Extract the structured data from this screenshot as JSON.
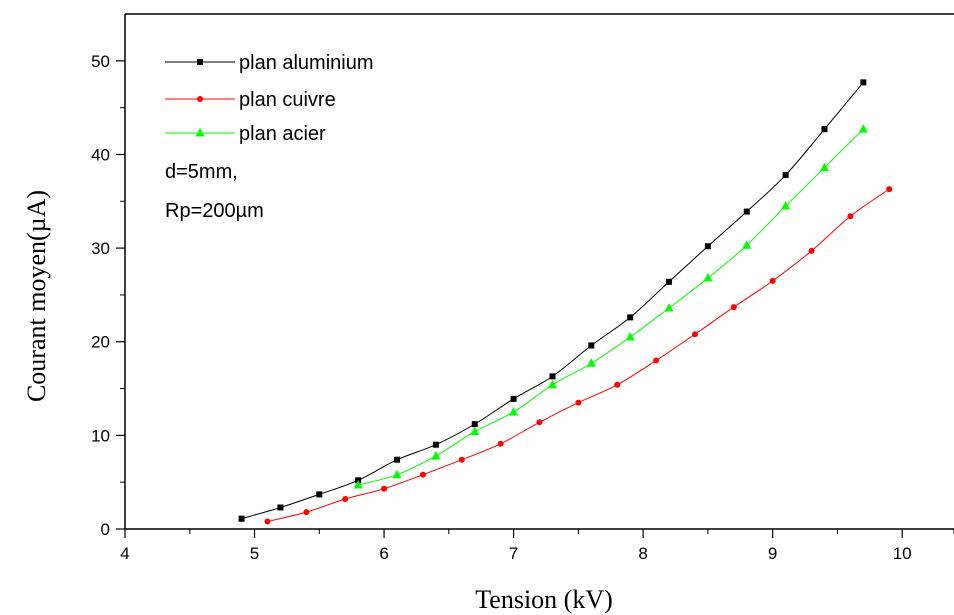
{
  "chart_data": {
    "type": "line",
    "xlabel": "Tension (kV)",
    "ylabel": "Courant moyen(µA)",
    "xlim": [
      4,
      10.4
    ],
    "ylim": [
      0,
      55
    ],
    "xticks": [
      4,
      5,
      6,
      7,
      8,
      9,
      10
    ],
    "yticks": [
      0,
      10,
      20,
      30,
      40,
      50
    ],
    "grid": false,
    "legend_position": "top-left",
    "annotations": [
      "d=5mm,",
      "Rp=200µm"
    ],
    "series": [
      {
        "name": "plan aluminium",
        "color": "#000000",
        "marker": "square",
        "x": [
          4.9,
          5.2,
          5.5,
          5.8,
          6.1,
          6.4,
          6.7,
          7.0,
          7.3,
          7.6,
          7.9,
          8.2,
          8.5,
          8.8,
          9.1,
          9.4,
          9.7
        ],
        "y": [
          1.1,
          2.3,
          3.7,
          5.2,
          7.4,
          9.0,
          11.2,
          13.9,
          16.3,
          19.6,
          22.6,
          26.4,
          30.2,
          33.9,
          37.8,
          42.7,
          47.7
        ]
      },
      {
        "name": "plan cuivre",
        "color": "#ff0000",
        "marker": "circle",
        "x": [
          5.1,
          5.4,
          5.7,
          6.0,
          6.3,
          6.6,
          6.9,
          7.2,
          7.5,
          7.8,
          8.1,
          8.4,
          8.7,
          9.0,
          9.3,
          9.6,
          9.9
        ],
        "y": [
          0.8,
          1.8,
          3.2,
          4.3,
          5.8,
          7.4,
          9.1,
          11.4,
          13.5,
          15.4,
          18.0,
          20.8,
          23.7,
          26.5,
          29.7,
          33.4,
          36.3
        ]
      },
      {
        "name": "plan acier",
        "color": "#00ff00",
        "marker": "triangle",
        "x": [
          5.8,
          6.1,
          6.4,
          6.7,
          7.0,
          7.3,
          7.6,
          7.9,
          8.2,
          8.5,
          8.8,
          9.1,
          9.4,
          9.7
        ],
        "y": [
          4.7,
          5.8,
          7.8,
          10.4,
          12.5,
          15.4,
          17.7,
          20.5,
          23.6,
          26.8,
          30.3,
          34.5,
          38.6,
          42.7
        ]
      }
    ]
  }
}
